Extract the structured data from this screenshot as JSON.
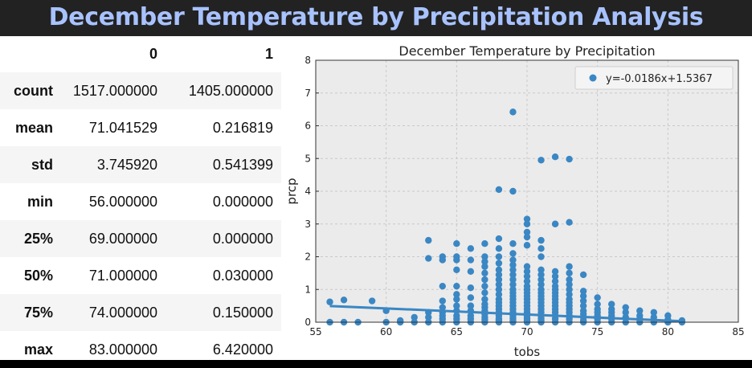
{
  "banner": {
    "title": "December Temperature by Precipitation Analysis"
  },
  "table": {
    "columns": [
      "",
      "0",
      "1"
    ],
    "rows": [
      {
        "label": "count",
        "c0": "1517.000000",
        "c1": "1405.000000"
      },
      {
        "label": "mean",
        "c0": "71.041529",
        "c1": "0.216819"
      },
      {
        "label": "std",
        "c0": "3.745920",
        "c1": "0.541399"
      },
      {
        "label": "min",
        "c0": "56.000000",
        "c1": "0.000000"
      },
      {
        "label": "25%",
        "c0": "69.000000",
        "c1": "0.000000"
      },
      {
        "label": "50%",
        "c0": "71.000000",
        "c1": "0.030000"
      },
      {
        "label": "75%",
        "c0": "74.000000",
        "c1": "0.150000"
      },
      {
        "label": "max",
        "c0": "83.000000",
        "c1": "6.420000"
      }
    ]
  },
  "chart_data": {
    "type": "scatter",
    "title": "December Temperature by Precipitation",
    "xlabel": "tobs",
    "ylabel": "prcp",
    "xlim": [
      55,
      85
    ],
    "ylim": [
      0,
      8
    ],
    "xticks": [
      55,
      60,
      65,
      70,
      75,
      80,
      85
    ],
    "yticks": [
      0,
      1,
      2,
      3,
      4,
      5,
      6,
      7,
      8
    ],
    "grid": true,
    "legend_position": "top-right",
    "series": [
      {
        "name": "y=-0.0186x+1.5367",
        "color": "#3a87c4",
        "points": [
          [
            56,
            0.62
          ],
          [
            56,
            0.0
          ],
          [
            57,
            0.68
          ],
          [
            57,
            0.0
          ],
          [
            58,
            0.0
          ],
          [
            59,
            0.65
          ],
          [
            60,
            0.35
          ],
          [
            60,
            0.0
          ],
          [
            61,
            0.05
          ],
          [
            61,
            0.0
          ],
          [
            62,
            0.15
          ],
          [
            62,
            0.0
          ],
          [
            63,
            2.5
          ],
          [
            63,
            1.95
          ],
          [
            63,
            0.3
          ],
          [
            63,
            0.15
          ],
          [
            63,
            0.0
          ],
          [
            64,
            2.0
          ],
          [
            64,
            1.9
          ],
          [
            64,
            1.1
          ],
          [
            64,
            0.65
          ],
          [
            64,
            0.45
          ],
          [
            64,
            0.3
          ],
          [
            64,
            0.2
          ],
          [
            64,
            0.1
          ],
          [
            64,
            0.0
          ],
          [
            65,
            2.4
          ],
          [
            65,
            2.0
          ],
          [
            65,
            1.9
          ],
          [
            65,
            1.6
          ],
          [
            65,
            1.1
          ],
          [
            65,
            0.85
          ],
          [
            65,
            0.7
          ],
          [
            65,
            0.5
          ],
          [
            65,
            0.35
          ],
          [
            65,
            0.2
          ],
          [
            65,
            0.1
          ],
          [
            65,
            0.0
          ],
          [
            66,
            2.25
          ],
          [
            66,
            1.9
          ],
          [
            66,
            1.55
          ],
          [
            66,
            1.05
          ],
          [
            66,
            0.75
          ],
          [
            66,
            0.5
          ],
          [
            66,
            0.35
          ],
          [
            66,
            0.2
          ],
          [
            66,
            0.1
          ],
          [
            66,
            0.0
          ],
          [
            67,
            2.4
          ],
          [
            67,
            2.0
          ],
          [
            67,
            1.85
          ],
          [
            67,
            1.7
          ],
          [
            67,
            1.5
          ],
          [
            67,
            1.3
          ],
          [
            67,
            1.1
          ],
          [
            67,
            0.9
          ],
          [
            67,
            0.7
          ],
          [
            67,
            0.55
          ],
          [
            67,
            0.45
          ],
          [
            67,
            0.35
          ],
          [
            67,
            0.25
          ],
          [
            67,
            0.15
          ],
          [
            67,
            0.08
          ],
          [
            67,
            0.0
          ],
          [
            68,
            4.05
          ],
          [
            68,
            2.55
          ],
          [
            68,
            2.25
          ],
          [
            68,
            2.0
          ],
          [
            68,
            1.8
          ],
          [
            68,
            1.6
          ],
          [
            68,
            1.45
          ],
          [
            68,
            1.3
          ],
          [
            68,
            1.15
          ],
          [
            68,
            1.0
          ],
          [
            68,
            0.85
          ],
          [
            68,
            0.7
          ],
          [
            68,
            0.6
          ],
          [
            68,
            0.5
          ],
          [
            68,
            0.4
          ],
          [
            68,
            0.3
          ],
          [
            68,
            0.2
          ],
          [
            68,
            0.1
          ],
          [
            68,
            0.05
          ],
          [
            68,
            0.0
          ],
          [
            69,
            6.42
          ],
          [
            69,
            4.0
          ],
          [
            69,
            2.4
          ],
          [
            69,
            2.1
          ],
          [
            69,
            1.9
          ],
          [
            69,
            1.75
          ],
          [
            69,
            1.6
          ],
          [
            69,
            1.45
          ],
          [
            69,
            1.3
          ],
          [
            69,
            1.15
          ],
          [
            69,
            1.0
          ],
          [
            69,
            0.9
          ],
          [
            69,
            0.8
          ],
          [
            69,
            0.7
          ],
          [
            69,
            0.6
          ],
          [
            69,
            0.5
          ],
          [
            69,
            0.4
          ],
          [
            69,
            0.3
          ],
          [
            69,
            0.2
          ],
          [
            69,
            0.12
          ],
          [
            69,
            0.05
          ],
          [
            69,
            0.0
          ],
          [
            70,
            3.15
          ],
          [
            70,
            3.0
          ],
          [
            70,
            2.75
          ],
          [
            70,
            2.6
          ],
          [
            70,
            2.35
          ],
          [
            70,
            1.7
          ],
          [
            70,
            1.55
          ],
          [
            70,
            1.4
          ],
          [
            70,
            1.25
          ],
          [
            70,
            1.1
          ],
          [
            70,
            1.0
          ],
          [
            70,
            0.9
          ],
          [
            70,
            0.8
          ],
          [
            70,
            0.7
          ],
          [
            70,
            0.6
          ],
          [
            70,
            0.5
          ],
          [
            70,
            0.4
          ],
          [
            70,
            0.3
          ],
          [
            70,
            0.2
          ],
          [
            70,
            0.12
          ],
          [
            70,
            0.05
          ],
          [
            70,
            0.0
          ],
          [
            71,
            4.95
          ],
          [
            71,
            2.5
          ],
          [
            71,
            2.25
          ],
          [
            71,
            2.0
          ],
          [
            71,
            1.6
          ],
          [
            71,
            1.45
          ],
          [
            71,
            1.3
          ],
          [
            71,
            1.15
          ],
          [
            71,
            1.0
          ],
          [
            71,
            0.9
          ],
          [
            71,
            0.8
          ],
          [
            71,
            0.7
          ],
          [
            71,
            0.6
          ],
          [
            71,
            0.5
          ],
          [
            71,
            0.4
          ],
          [
            71,
            0.3
          ],
          [
            71,
            0.2
          ],
          [
            71,
            0.12
          ],
          [
            71,
            0.05
          ],
          [
            71,
            0.0
          ],
          [
            72,
            5.05
          ],
          [
            72,
            3.0
          ],
          [
            72,
            1.55
          ],
          [
            72,
            1.4
          ],
          [
            72,
            1.25
          ],
          [
            72,
            1.1
          ],
          [
            72,
            1.0
          ],
          [
            72,
            0.9
          ],
          [
            72,
            0.8
          ],
          [
            72,
            0.7
          ],
          [
            72,
            0.6
          ],
          [
            72,
            0.5
          ],
          [
            72,
            0.4
          ],
          [
            72,
            0.3
          ],
          [
            72,
            0.2
          ],
          [
            72,
            0.1
          ],
          [
            72,
            0.0
          ],
          [
            73,
            4.98
          ],
          [
            73,
            3.05
          ],
          [
            73,
            1.7
          ],
          [
            73,
            1.5
          ],
          [
            73,
            1.3
          ],
          [
            73,
            1.15
          ],
          [
            73,
            1.0
          ],
          [
            73,
            0.85
          ],
          [
            73,
            0.7
          ],
          [
            73,
            0.6
          ],
          [
            73,
            0.5
          ],
          [
            73,
            0.4
          ],
          [
            73,
            0.3
          ],
          [
            73,
            0.2
          ],
          [
            73,
            0.1
          ],
          [
            73,
            0.0
          ],
          [
            74,
            1.45
          ],
          [
            74,
            0.95
          ],
          [
            74,
            0.8
          ],
          [
            74,
            0.65
          ],
          [
            74,
            0.5
          ],
          [
            74,
            0.35
          ],
          [
            74,
            0.25
          ],
          [
            74,
            0.15
          ],
          [
            74,
            0.05
          ],
          [
            74,
            0.0
          ],
          [
            75,
            0.75
          ],
          [
            75,
            0.55
          ],
          [
            75,
            0.4
          ],
          [
            75,
            0.3
          ],
          [
            75,
            0.2
          ],
          [
            75,
            0.1
          ],
          [
            75,
            0.0
          ],
          [
            76,
            0.55
          ],
          [
            76,
            0.4
          ],
          [
            76,
            0.3
          ],
          [
            76,
            0.2
          ],
          [
            76,
            0.1
          ],
          [
            76,
            0.0
          ],
          [
            77,
            0.45
          ],
          [
            77,
            0.3
          ],
          [
            77,
            0.15
          ],
          [
            77,
            0.0
          ],
          [
            78,
            0.35
          ],
          [
            78,
            0.2
          ],
          [
            78,
            0.1
          ],
          [
            78,
            0.0
          ],
          [
            79,
            0.3
          ],
          [
            79,
            0.15
          ],
          [
            79,
            0.0
          ],
          [
            80,
            0.2
          ],
          [
            80,
            0.08
          ],
          [
            80,
            0.0
          ],
          [
            81,
            0.05
          ],
          [
            81,
            0.0
          ]
        ]
      }
    ],
    "regression": {
      "slope": -0.0186,
      "intercept": 1.5367,
      "x_range": [
        56,
        81
      ],
      "color": "#3a87c4"
    }
  }
}
